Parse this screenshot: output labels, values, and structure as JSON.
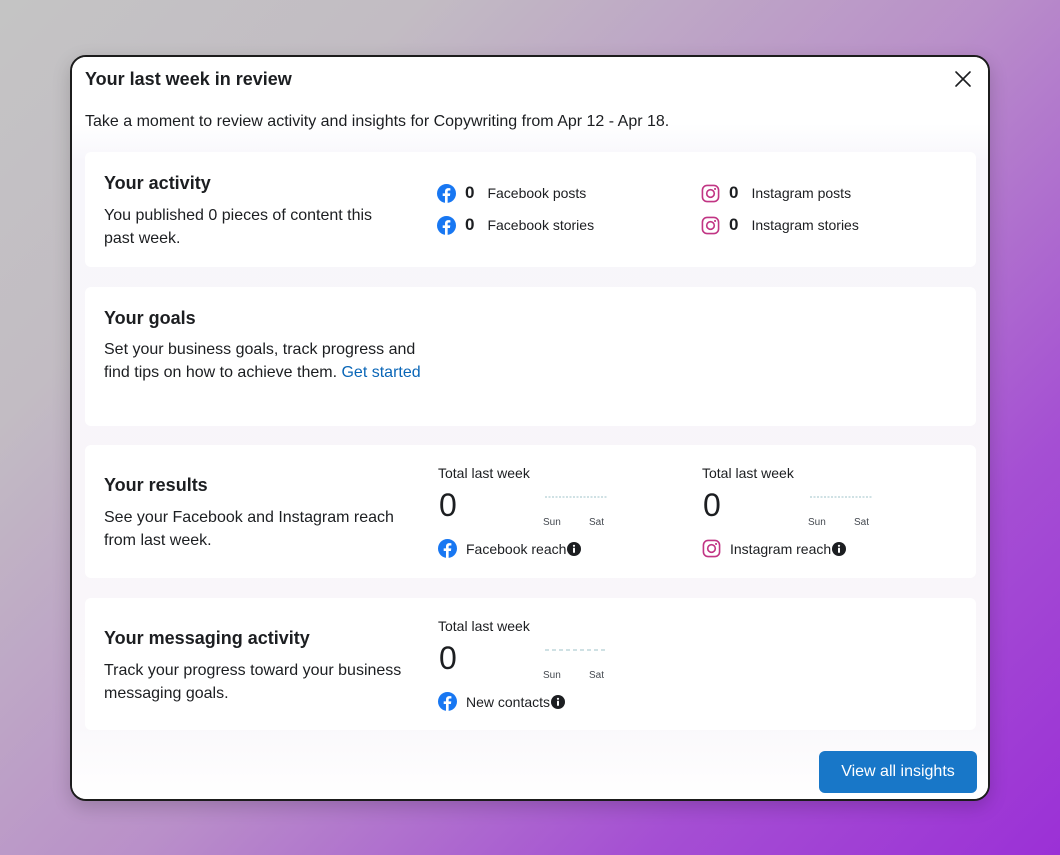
{
  "dialog": {
    "title": "Your last week in review",
    "subtitle": "Take a moment to review activity and insights for Copywriting from Apr 12 - Apr 18.",
    "close_icon": "close-icon"
  },
  "activity": {
    "title": "Your activity",
    "description": "You published 0 pieces of content this past week.",
    "facebook_posts": {
      "value": "0",
      "label": "Facebook posts"
    },
    "facebook_stories": {
      "value": "0",
      "label": "Facebook stories"
    },
    "instagram_posts": {
      "value": "0",
      "label": "Instagram posts"
    },
    "instagram_stories": {
      "value": "0",
      "label": "Instagram stories"
    }
  },
  "goals": {
    "title": "Your goals",
    "description": "Set your business goals, track progress and find tips on how to achieve them.",
    "link": "Get started"
  },
  "results": {
    "title": "Your results",
    "description": "See your Facebook and Instagram reach from last week.",
    "facebook": {
      "total_label": "Total last week",
      "value": "0",
      "axis_start": "Sun",
      "axis_end": "Sat",
      "label": "Facebook reach"
    },
    "instagram": {
      "total_label": "Total last week",
      "value": "0",
      "axis_start": "Sun",
      "axis_end": "Sat",
      "label": "Instagram reach"
    }
  },
  "messaging": {
    "title": "Your messaging activity",
    "description": "Track your progress toward your business messaging goals.",
    "total_label": "Total last week",
    "value": "0",
    "axis_start": "Sun",
    "axis_end": "Sat",
    "label": "New contacts"
  },
  "footer": {
    "view_all_label": "View all insights"
  },
  "colors": {
    "facebook_blue": "#1877f2",
    "instagram_pink": "#c13584",
    "link_blue": "#0a66b7",
    "primary_button": "#1877c8",
    "sparkline": "#9fc3c9"
  }
}
